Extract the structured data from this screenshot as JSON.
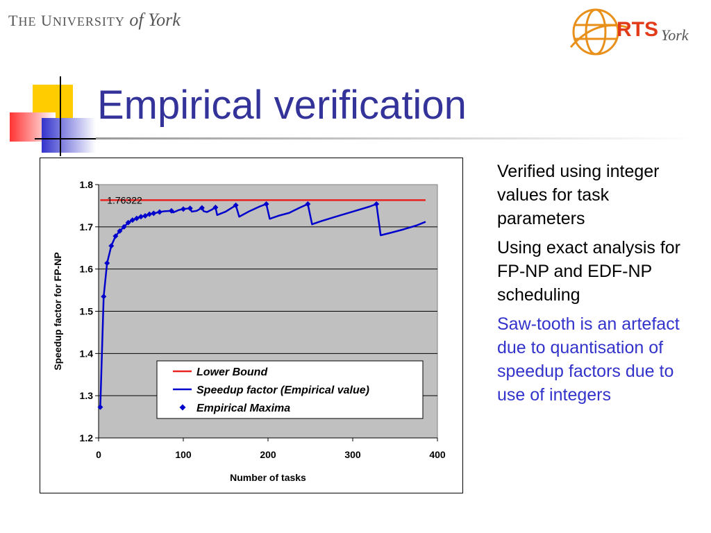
{
  "header": {
    "university_logo": "The University of York",
    "rts_logo": "RTS York",
    "title": "Empirical verification"
  },
  "bullets": [
    "Verified using integer values for task parameters",
    "Using exact analysis for FP-NP and EDF-NP scheduling",
    "Saw-tooth is an artefact due to quantisation of speedup factors due to use of integers"
  ],
  "colors": {
    "title": "#333399",
    "accent_text": "#3333cc",
    "plot_background": "#c0c0c0",
    "lower_bound": "#e8231f",
    "empirical": "#0000cc"
  },
  "chart_data": {
    "type": "line",
    "xlabel": "Number of tasks",
    "ylabel": "Speedup factor for FP-NP",
    "xlim": [
      0,
      400
    ],
    "ylim": [
      1.2,
      1.8
    ],
    "x_ticks": [
      "0",
      "100",
      "200",
      "300",
      "400"
    ],
    "y_ticks": [
      "1.2",
      "1.3",
      "1.4",
      "1.5",
      "1.6",
      "1.7",
      "1.8"
    ],
    "grid": true,
    "legend_position": "bottom-right",
    "annotation": "1.76322",
    "series": [
      {
        "name": "Lower Bound",
        "kind": "line",
        "color": "#e8231f",
        "points": [
          [
            2,
            1.76322
          ],
          [
            386,
            1.76322
          ]
        ]
      },
      {
        "name": "Speedup factor (Empirical value)",
        "kind": "line",
        "color": "#0000cc",
        "points": [
          [
            2,
            1.273
          ],
          [
            6,
            1.535
          ],
          [
            10,
            1.614
          ],
          [
            15,
            1.655
          ],
          [
            20,
            1.678
          ],
          [
            25,
            1.69
          ],
          [
            30,
            1.7
          ],
          [
            35,
            1.71
          ],
          [
            40,
            1.716
          ],
          [
            45,
            1.72
          ],
          [
            50,
            1.724
          ],
          [
            55,
            1.726
          ],
          [
            60,
            1.73
          ],
          [
            65,
            1.732
          ],
          [
            72,
            1.735
          ],
          [
            78,
            1.737
          ],
          [
            86,
            1.738
          ],
          [
            88,
            1.734
          ],
          [
            95,
            1.74
          ],
          [
            100,
            1.742
          ],
          [
            108,
            1.744
          ],
          [
            110,
            1.736
          ],
          [
            116,
            1.738
          ],
          [
            122,
            1.745
          ],
          [
            124,
            1.737
          ],
          [
            128,
            1.735
          ],
          [
            133,
            1.74
          ],
          [
            138,
            1.746
          ],
          [
            140,
            1.728
          ],
          [
            150,
            1.736
          ],
          [
            162,
            1.751
          ],
          [
            166,
            1.724
          ],
          [
            178,
            1.737
          ],
          [
            190,
            1.748
          ],
          [
            198,
            1.754
          ],
          [
            202,
            1.719
          ],
          [
            212,
            1.726
          ],
          [
            225,
            1.733
          ],
          [
            237,
            1.745
          ],
          [
            247,
            1.754
          ],
          [
            252,
            1.706
          ],
          [
            262,
            1.713
          ],
          [
            280,
            1.724
          ],
          [
            300,
            1.736
          ],
          [
            320,
            1.748
          ],
          [
            328,
            1.754
          ],
          [
            333,
            1.68
          ],
          [
            345,
            1.686
          ],
          [
            360,
            1.694
          ],
          [
            375,
            1.703
          ],
          [
            386,
            1.712
          ]
        ]
      },
      {
        "name": "Empirical Maxima",
        "kind": "markers",
        "color": "#0000cc",
        "points": [
          [
            2,
            1.273
          ],
          [
            6,
            1.535
          ],
          [
            10,
            1.614
          ],
          [
            15,
            1.655
          ],
          [
            20,
            1.678
          ],
          [
            25,
            1.69
          ],
          [
            30,
            1.7
          ],
          [
            35,
            1.71
          ],
          [
            40,
            1.716
          ],
          [
            45,
            1.72
          ],
          [
            50,
            1.724
          ],
          [
            55,
            1.726
          ],
          [
            60,
            1.73
          ],
          [
            65,
            1.732
          ],
          [
            72,
            1.735
          ],
          [
            86,
            1.738
          ],
          [
            100,
            1.742
          ],
          [
            108,
            1.744
          ],
          [
            122,
            1.745
          ],
          [
            138,
            1.746
          ],
          [
            162,
            1.751
          ],
          [
            198,
            1.754
          ],
          [
            247,
            1.754
          ],
          [
            328,
            1.754
          ]
        ]
      }
    ]
  }
}
